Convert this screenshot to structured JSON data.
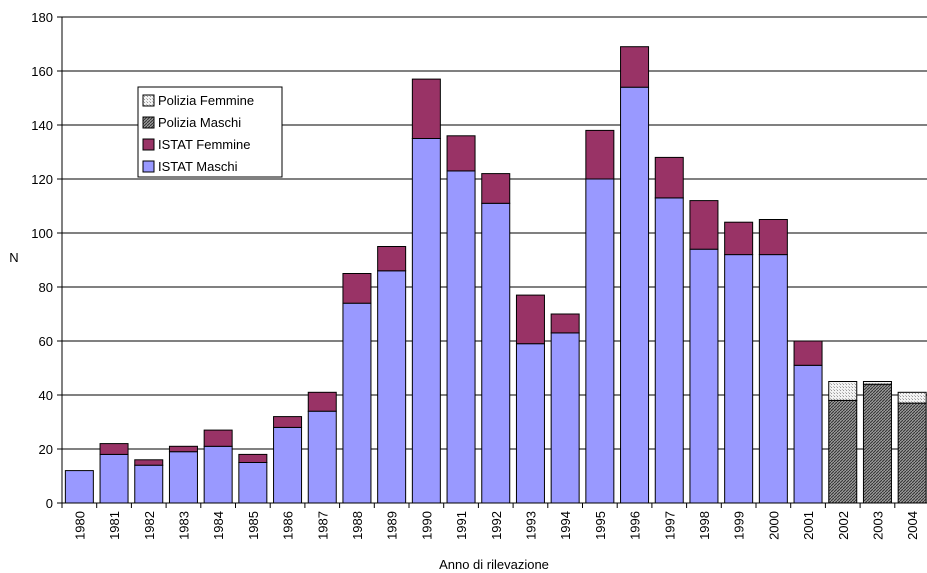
{
  "chart_data": {
    "type": "bar",
    "stacked": true,
    "title": "",
    "xlabel": "Anno di rilevazione",
    "ylabel": "N",
    "ylim": [
      0,
      180
    ],
    "yticks": [
      0,
      20,
      40,
      60,
      80,
      100,
      120,
      140,
      160,
      180
    ],
    "grid": true,
    "legend_position": "upper-left",
    "categories": [
      "1980",
      "1981",
      "1982",
      "1983",
      "1984",
      "1985",
      "1986",
      "1987",
      "1988",
      "1989",
      "1990",
      "1991",
      "1992",
      "1993",
      "1994",
      "1995",
      "1996",
      "1997",
      "1998",
      "1999",
      "2000",
      "2001",
      "2002",
      "2003",
      "2004"
    ],
    "series": [
      {
        "name": "ISTAT Maschi",
        "color": "#9999ff",
        "pattern": "solid",
        "values": [
          12,
          18,
          14,
          19,
          21,
          15,
          28,
          34,
          74,
          86,
          135,
          123,
          111,
          59,
          63,
          120,
          154,
          113,
          94,
          92,
          92,
          51,
          0,
          0,
          0
        ]
      },
      {
        "name": "ISTAT Femmine",
        "color": "#993366",
        "pattern": "solid",
        "values": [
          0,
          4,
          2,
          2,
          6,
          3,
          4,
          7,
          11,
          9,
          22,
          13,
          11,
          18,
          7,
          18,
          15,
          15,
          18,
          12,
          13,
          9,
          0,
          0,
          0
        ]
      },
      {
        "name": "Polizia Maschi",
        "color": "#808080",
        "pattern": "dense-hatch",
        "values": [
          0,
          0,
          0,
          0,
          0,
          0,
          0,
          0,
          0,
          0,
          0,
          0,
          0,
          0,
          0,
          0,
          0,
          0,
          0,
          0,
          0,
          0,
          38,
          44,
          37
        ]
      },
      {
        "name": "Polizia Femmine",
        "color": "#e6e6e6",
        "pattern": "light-dots",
        "values": [
          0,
          0,
          0,
          0,
          0,
          0,
          0,
          0,
          0,
          0,
          0,
          0,
          0,
          0,
          0,
          0,
          0,
          0,
          0,
          0,
          0,
          0,
          7,
          1,
          4
        ]
      }
    ],
    "legend_order": [
      "Polizia Femmine",
      "Polizia Maschi",
      "ISTAT Femmine",
      "ISTAT Maschi"
    ]
  }
}
